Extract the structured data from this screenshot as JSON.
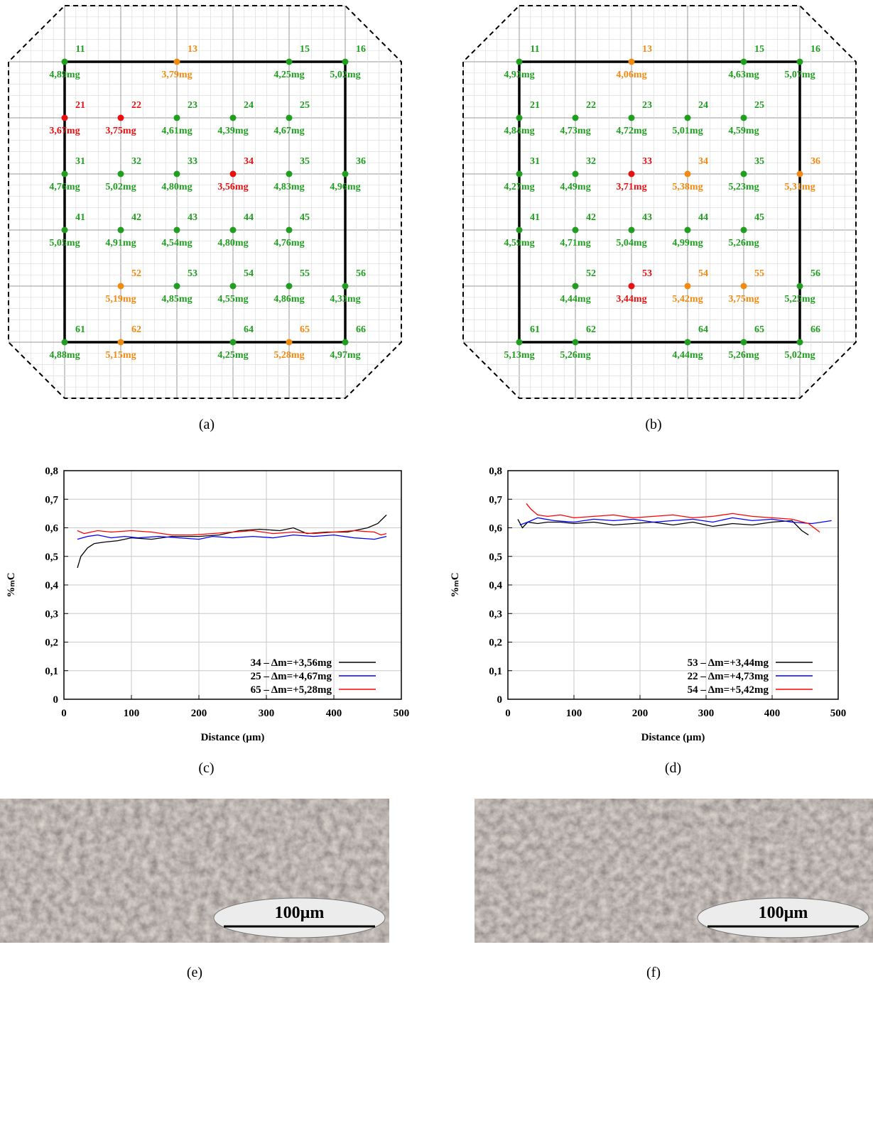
{
  "maps": [
    {
      "caption": "(a)",
      "points": [
        [
          {
            "id": "11",
            "mass": "4,89mg",
            "color": "#1f9e1f"
          },
          null,
          {
            "id": "13",
            "mass": "3,79mg",
            "color": "#f08a10"
          },
          null,
          {
            "id": "15",
            "mass": "4,25mg",
            "color": "#1f9e1f"
          },
          {
            "id": "16",
            "mass": "5,02mg",
            "color": "#1f9e1f"
          }
        ],
        [
          {
            "id": "21",
            "mass": "3,67mg",
            "color": "#e81010"
          },
          {
            "id": "22",
            "mass": "3,75mg",
            "color": "#e81010"
          },
          {
            "id": "23",
            "mass": "4,61mg",
            "color": "#1f9e1f"
          },
          {
            "id": "24",
            "mass": "4,39mg",
            "color": "#1f9e1f"
          },
          {
            "id": "25",
            "mass": "4,67mg",
            "color": "#1f9e1f"
          },
          null
        ],
        [
          {
            "id": "31",
            "mass": "4,76mg",
            "color": "#1f9e1f"
          },
          {
            "id": "32",
            "mass": "5,02mg",
            "color": "#1f9e1f"
          },
          {
            "id": "33",
            "mass": "4,80mg",
            "color": "#1f9e1f"
          },
          {
            "id": "34",
            "mass": "3,56mg",
            "color": "#e81010"
          },
          {
            "id": "35",
            "mass": "4,83mg",
            "color": "#1f9e1f"
          },
          {
            "id": "36",
            "mass": "4,96mg",
            "color": "#1f9e1f"
          }
        ],
        [
          {
            "id": "41",
            "mass": "5,05mg",
            "color": "#1f9e1f"
          },
          {
            "id": "42",
            "mass": "4,91mg",
            "color": "#1f9e1f"
          },
          {
            "id": "43",
            "mass": "4,54mg",
            "color": "#1f9e1f"
          },
          {
            "id": "44",
            "mass": "4,80mg",
            "color": "#1f9e1f"
          },
          {
            "id": "45",
            "mass": "4,76mg",
            "color": "#1f9e1f"
          },
          null
        ],
        [
          null,
          {
            "id": "52",
            "mass": "5,19mg",
            "color": "#f08a10"
          },
          {
            "id": "53",
            "mass": "4,85mg",
            "color": "#1f9e1f"
          },
          {
            "id": "54",
            "mass": "4,55mg",
            "color": "#1f9e1f"
          },
          {
            "id": "55",
            "mass": "4,86mg",
            "color": "#1f9e1f"
          },
          {
            "id": "56",
            "mass": "4,33mg",
            "color": "#1f9e1f"
          }
        ],
        [
          {
            "id": "61",
            "mass": "4,88mg",
            "color": "#1f9e1f"
          },
          {
            "id": "62",
            "mass": "5,15mg",
            "color": "#f08a10"
          },
          null,
          {
            "id": "64",
            "mass": "4,25mg",
            "color": "#1f9e1f"
          },
          {
            "id": "65",
            "mass": "5,28mg",
            "color": "#f08a10"
          },
          {
            "id": "66",
            "mass": "4,97mg",
            "color": "#1f9e1f"
          }
        ]
      ]
    },
    {
      "caption": "(b)",
      "points": [
        [
          {
            "id": "11",
            "mass": "4,93mg",
            "color": "#1f9e1f"
          },
          null,
          {
            "id": "13",
            "mass": "4,06mg",
            "color": "#f08a10"
          },
          null,
          {
            "id": "15",
            "mass": "4,63mg",
            "color": "#1f9e1f"
          },
          {
            "id": "16",
            "mass": "5,07mg",
            "color": "#1f9e1f"
          }
        ],
        [
          {
            "id": "21",
            "mass": "4,84mg",
            "color": "#1f9e1f"
          },
          {
            "id": "22",
            "mass": "4,73mg",
            "color": "#1f9e1f"
          },
          {
            "id": "23",
            "mass": "4,72mg",
            "color": "#1f9e1f"
          },
          {
            "id": "24",
            "mass": "5,01mg",
            "color": "#1f9e1f"
          },
          {
            "id": "25",
            "mass": "4,59mg",
            "color": "#1f9e1f"
          },
          null
        ],
        [
          {
            "id": "31",
            "mass": "4,27mg",
            "color": "#1f9e1f"
          },
          {
            "id": "32",
            "mass": "4,49mg",
            "color": "#1f9e1f"
          },
          {
            "id": "33",
            "mass": "3,71mg",
            "color": "#e81010"
          },
          {
            "id": "34",
            "mass": "5,38mg",
            "color": "#f08a10"
          },
          {
            "id": "35",
            "mass": "5,23mg",
            "color": "#1f9e1f"
          },
          {
            "id": "36",
            "mass": "5,31mg",
            "color": "#f08a10"
          }
        ],
        [
          {
            "id": "41",
            "mass": "4,59mg",
            "color": "#1f9e1f"
          },
          {
            "id": "42",
            "mass": "4,71mg",
            "color": "#1f9e1f"
          },
          {
            "id": "43",
            "mass": "5,04mg",
            "color": "#1f9e1f"
          },
          {
            "id": "44",
            "mass": "4,99mg",
            "color": "#1f9e1f"
          },
          {
            "id": "45",
            "mass": "5,26mg",
            "color": "#1f9e1f"
          },
          null
        ],
        [
          null,
          {
            "id": "52",
            "mass": "4,44mg",
            "color": "#1f9e1f"
          },
          {
            "id": "53",
            "mass": "3,44mg",
            "color": "#e81010"
          },
          {
            "id": "54",
            "mass": "5,42mg",
            "color": "#f08a10"
          },
          {
            "id": "55",
            "mass": "3,75mg",
            "color": "#f08a10"
          },
          {
            "id": "56",
            "mass": "5,25mg",
            "color": "#1f9e1f"
          }
        ],
        [
          {
            "id": "61",
            "mass": "5,13mg",
            "color": "#1f9e1f"
          },
          {
            "id": "62",
            "mass": "5,26mg",
            "color": "#1f9e1f"
          },
          null,
          {
            "id": "64",
            "mass": "4,44mg",
            "color": "#1f9e1f"
          },
          {
            "id": "65",
            "mass": "5,26mg",
            "color": "#1f9e1f"
          },
          {
            "id": "66",
            "mass": "5,02mg",
            "color": "#1f9e1f"
          }
        ]
      ]
    }
  ],
  "chart_data": [
    {
      "type": "line",
      "caption": "(c)",
      "xlabel": "Distance (µm)",
      "ylabel": "%ₘC",
      "xlim": [
        0,
        500
      ],
      "ylim": [
        0,
        0.8
      ],
      "xticks": [
        0,
        100,
        200,
        300,
        400,
        500
      ],
      "yticks": [
        0,
        {
          "value": 0.1,
          "label": "0,1"
        },
        {
          "value": 0.2,
          "label": "0,2"
        },
        {
          "value": 0.3,
          "label": "0,3"
        },
        {
          "value": 0.4,
          "label": "0,4"
        },
        {
          "value": 0.5,
          "label": "0,5"
        },
        {
          "value": 0.6,
          "label": "0,6"
        },
        {
          "value": 0.7,
          "label": "0,7"
        },
        {
          "value": 0.8,
          "label": "0,8"
        }
      ],
      "grid": true,
      "legend": "lower right",
      "series": [
        {
          "name": "34 – Δm=+3,56mg",
          "color": "#000000",
          "x": [
            20,
            25,
            35,
            45,
            60,
            80,
            100,
            130,
            160,
            200,
            230,
            260,
            290,
            320,
            340,
            360,
            390,
            420,
            450,
            465,
            478
          ],
          "values": [
            0.46,
            0.5,
            0.53,
            0.545,
            0.55,
            0.555,
            0.565,
            0.56,
            0.57,
            0.57,
            0.575,
            0.59,
            0.595,
            0.59,
            0.6,
            0.58,
            0.585,
            0.585,
            0.6,
            0.615,
            0.645
          ]
        },
        {
          "name": "25 – Δm=+4,67mg",
          "color": "#0000ff",
          "x": [
            20,
            35,
            50,
            70,
            90,
            110,
            140,
            170,
            200,
            220,
            250,
            280,
            310,
            340,
            370,
            400,
            430,
            460,
            478
          ],
          "values": [
            0.56,
            0.57,
            0.575,
            0.565,
            0.57,
            0.565,
            0.57,
            0.565,
            0.56,
            0.57,
            0.565,
            0.57,
            0.565,
            0.575,
            0.57,
            0.575,
            0.565,
            0.56,
            0.57
          ]
        },
        {
          "name": "65 – Δm=+5,28mg",
          "color": "#ff0000",
          "x": [
            20,
            30,
            50,
            70,
            100,
            130,
            160,
            190,
            220,
            250,
            280,
            310,
            340,
            370,
            400,
            430,
            460,
            470,
            478
          ],
          "values": [
            0.59,
            0.58,
            0.59,
            0.585,
            0.59,
            0.585,
            0.575,
            0.575,
            0.58,
            0.585,
            0.59,
            0.58,
            0.585,
            0.58,
            0.585,
            0.59,
            0.585,
            0.575,
            0.58
          ]
        }
      ]
    },
    {
      "type": "line",
      "caption": "(d)",
      "xlabel": "Distance (µm)",
      "ylabel": "%ₘC",
      "xlim": [
        0,
        500
      ],
      "ylim": [
        0,
        0.8
      ],
      "xticks": [
        0,
        100,
        200,
        300,
        400,
        500
      ],
      "yticks": [
        0,
        {
          "value": 0.1,
          "label": "0,1"
        },
        {
          "value": 0.2,
          "label": "0,2"
        },
        {
          "value": 0.3,
          "label": "0,3"
        },
        {
          "value": 0.4,
          "label": "0,4"
        },
        {
          "value": 0.5,
          "label": "0,5"
        },
        {
          "value": 0.6,
          "label": "0,6"
        },
        {
          "value": 0.7,
          "label": "0,7"
        },
        {
          "value": 0.8,
          "label": "0,8"
        }
      ],
      "grid": true,
      "legend": "lower right",
      "series": [
        {
          "name": "53 – Δm=+3,44mg",
          "color": "#000000",
          "x": [
            15,
            22,
            30,
            45,
            60,
            80,
            100,
            130,
            160,
            190,
            220,
            250,
            280,
            310,
            340,
            370,
            400,
            430,
            445,
            455
          ],
          "values": [
            0.63,
            0.6,
            0.62,
            0.615,
            0.62,
            0.62,
            0.615,
            0.62,
            0.61,
            0.615,
            0.62,
            0.61,
            0.62,
            0.605,
            0.615,
            0.61,
            0.62,
            0.625,
            0.59,
            0.575
          ]
        },
        {
          "name": "22 – Δm=+4,73mg",
          "color": "#0000ff",
          "x": [
            18,
            30,
            45,
            70,
            100,
            130,
            160,
            190,
            220,
            250,
            280,
            310,
            340,
            370,
            400,
            430,
            460,
            475,
            490
          ],
          "values": [
            0.61,
            0.62,
            0.635,
            0.625,
            0.62,
            0.63,
            0.625,
            0.63,
            0.62,
            0.625,
            0.63,
            0.62,
            0.635,
            0.625,
            0.63,
            0.62,
            0.615,
            0.62,
            0.625
          ]
        },
        {
          "name": "54 – Δm=+5,42mg",
          "color": "#ff0000",
          "x": [
            28,
            35,
            45,
            60,
            80,
            100,
            130,
            160,
            190,
            220,
            250,
            280,
            310,
            340,
            370,
            400,
            430,
            455,
            472
          ],
          "values": [
            0.685,
            0.665,
            0.645,
            0.64,
            0.645,
            0.635,
            0.64,
            0.645,
            0.635,
            0.64,
            0.645,
            0.635,
            0.64,
            0.65,
            0.64,
            0.635,
            0.63,
            0.615,
            0.585
          ]
        }
      ]
    }
  ],
  "micrographs": [
    {
      "caption": "(e)",
      "scale_bar": "100µm"
    },
    {
      "caption": "(f)",
      "scale_bar": "100µm"
    }
  ]
}
